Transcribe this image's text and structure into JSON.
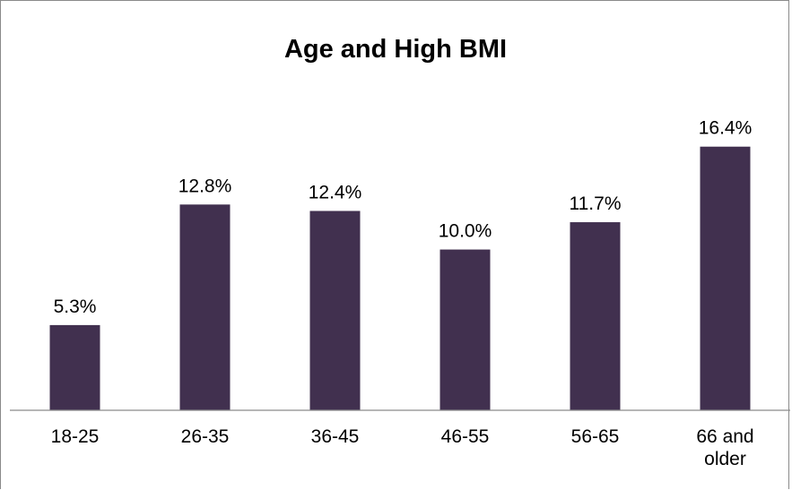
{
  "chart_data": {
    "type": "bar",
    "title": "Age and High BMI",
    "categories": [
      [
        "18-25"
      ],
      [
        "26-35"
      ],
      [
        "36-45"
      ],
      [
        "46-55"
      ],
      [
        "56-65"
      ],
      [
        "66 and",
        "older"
      ]
    ],
    "values": [
      5.3,
      12.8,
      12.4,
      10.0,
      11.7,
      16.4
    ],
    "data_labels": [
      "5.3%",
      "12.8%",
      "12.4%",
      "10.0%",
      "11.7%",
      "16.4%"
    ],
    "unit": "%",
    "ylim": [
      0,
      18
    ],
    "grid": false,
    "legend": "none",
    "bar_color": "#41304f",
    "axis_color": "#8a8a8a"
  }
}
